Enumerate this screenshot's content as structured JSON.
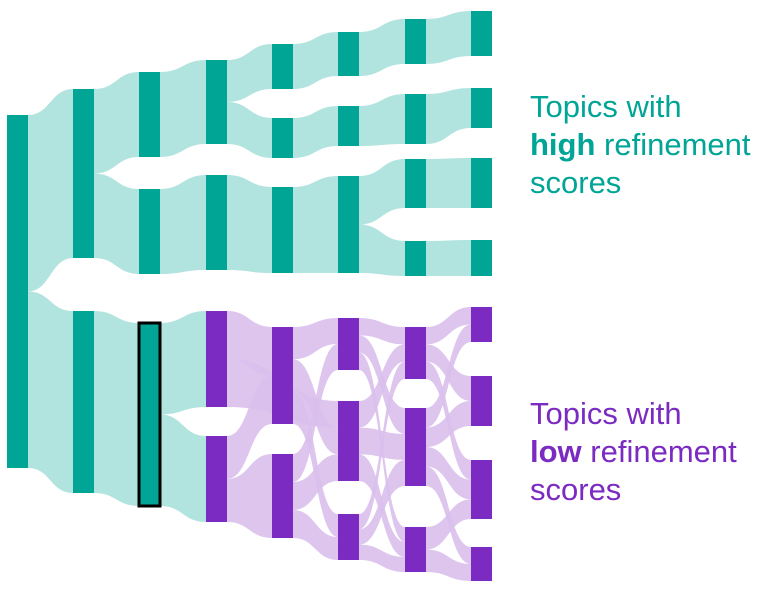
{
  "colors": {
    "high_node": "#00a596",
    "high_link": "#b2e4df",
    "low_node": "#7b2ac2",
    "low_link": "#d9bfec",
    "highlight_border": "#000000"
  },
  "legend": {
    "high": {
      "line1": "Topics with",
      "emphasis": "high",
      "rest": " refinement",
      "line3": "scores"
    },
    "low": {
      "line1": "Topics with",
      "emphasis": "low",
      "rest": " refinement",
      "line3": "scores"
    }
  },
  "diagram": {
    "levels": 8,
    "highlighted_node": "c2",
    "nodes": [
      {
        "id": "a",
        "level": 0,
        "group": "high"
      },
      {
        "id": "b1",
        "level": 1,
        "group": "high"
      },
      {
        "id": "b2",
        "level": 1,
        "group": "high"
      },
      {
        "id": "c1",
        "level": 2,
        "group": "high"
      },
      {
        "id": "c3",
        "level": 2,
        "group": "high"
      },
      {
        "id": "c2",
        "level": 2,
        "group": "high"
      },
      {
        "id": "d1",
        "level": 3,
        "group": "high"
      },
      {
        "id": "d2",
        "level": 3,
        "group": "high"
      },
      {
        "id": "d3",
        "level": 3,
        "group": "low"
      },
      {
        "id": "d4",
        "level": 3,
        "group": "low"
      },
      {
        "id": "e1",
        "level": 4,
        "group": "high"
      },
      {
        "id": "e2",
        "level": 4,
        "group": "high"
      },
      {
        "id": "e3",
        "level": 4,
        "group": "high"
      },
      {
        "id": "e4",
        "level": 4,
        "group": "low"
      },
      {
        "id": "e5",
        "level": 4,
        "group": "low"
      },
      {
        "id": "f1",
        "level": 5,
        "group": "high"
      },
      {
        "id": "f2",
        "level": 5,
        "group": "high"
      },
      {
        "id": "f3",
        "level": 5,
        "group": "high"
      },
      {
        "id": "f4",
        "level": 5,
        "group": "low"
      },
      {
        "id": "f5",
        "level": 5,
        "group": "low"
      },
      {
        "id": "f6",
        "level": 5,
        "group": "low"
      },
      {
        "id": "g1",
        "level": 6,
        "group": "high"
      },
      {
        "id": "g2",
        "level": 6,
        "group": "high"
      },
      {
        "id": "g3",
        "level": 6,
        "group": "high"
      },
      {
        "id": "g4",
        "level": 6,
        "group": "high"
      },
      {
        "id": "g5",
        "level": 6,
        "group": "low"
      },
      {
        "id": "g6",
        "level": 6,
        "group": "low"
      },
      {
        "id": "g7",
        "level": 6,
        "group": "low"
      },
      {
        "id": "h1",
        "level": 7,
        "group": "high"
      },
      {
        "id": "h2",
        "level": 7,
        "group": "high"
      },
      {
        "id": "h3",
        "level": 7,
        "group": "high"
      },
      {
        "id": "h4",
        "level": 7,
        "group": "high"
      },
      {
        "id": "h5",
        "level": 7,
        "group": "low"
      },
      {
        "id": "h6",
        "level": 7,
        "group": "low"
      },
      {
        "id": "h7",
        "level": 7,
        "group": "low"
      },
      {
        "id": "h8",
        "level": 7,
        "group": "low"
      }
    ],
    "links": [
      {
        "from": "a",
        "to": "b1",
        "group": "high"
      },
      {
        "from": "a",
        "to": "b2",
        "group": "high"
      },
      {
        "from": "b1",
        "to": "c1",
        "group": "high"
      },
      {
        "from": "b1",
        "to": "c3",
        "group": "high"
      },
      {
        "from": "b2",
        "to": "c2",
        "group": "high"
      },
      {
        "from": "c1",
        "to": "d1",
        "group": "high"
      },
      {
        "from": "c3",
        "to": "d2",
        "group": "high"
      },
      {
        "from": "c2",
        "to": "d3",
        "group": "high"
      },
      {
        "from": "c2",
        "to": "d4",
        "group": "high"
      },
      {
        "from": "d1",
        "to": "e1",
        "group": "high"
      },
      {
        "from": "d1",
        "to": "e2",
        "group": "high"
      },
      {
        "from": "d2",
        "to": "e3",
        "group": "high"
      },
      {
        "from": "d3",
        "to": "e4",
        "group": "low"
      },
      {
        "from": "d3",
        "to": "f5",
        "group": "low"
      },
      {
        "from": "d4",
        "to": "e4",
        "group": "low"
      },
      {
        "from": "d4",
        "to": "e5",
        "group": "low"
      },
      {
        "from": "e1",
        "to": "f1",
        "group": "high"
      },
      {
        "from": "e2",
        "to": "f2",
        "group": "high"
      },
      {
        "from": "e3",
        "to": "f3",
        "group": "high"
      },
      {
        "from": "e4",
        "to": "f4",
        "group": "low"
      },
      {
        "from": "e4",
        "to": "f5",
        "group": "low"
      },
      {
        "from": "e4",
        "to": "f6",
        "group": "low"
      },
      {
        "from": "e5",
        "to": "f4",
        "group": "low"
      },
      {
        "from": "e5",
        "to": "f5",
        "group": "low"
      },
      {
        "from": "e5",
        "to": "f6",
        "group": "low"
      },
      {
        "from": "f1",
        "to": "g1",
        "group": "high"
      },
      {
        "from": "f2",
        "to": "g2",
        "group": "high"
      },
      {
        "from": "f3",
        "to": "g3",
        "group": "high"
      },
      {
        "from": "f3",
        "to": "g4",
        "group": "high"
      },
      {
        "from": "f4",
        "to": "g5",
        "group": "low"
      },
      {
        "from": "f4",
        "to": "g6",
        "group": "low"
      },
      {
        "from": "f4",
        "to": "g7",
        "group": "low"
      },
      {
        "from": "f5",
        "to": "g5",
        "group": "low"
      },
      {
        "from": "f5",
        "to": "g6",
        "group": "low"
      },
      {
        "from": "f5",
        "to": "g7",
        "group": "low"
      },
      {
        "from": "f6",
        "to": "g5",
        "group": "low"
      },
      {
        "from": "f6",
        "to": "g6",
        "group": "low"
      },
      {
        "from": "f6",
        "to": "g7",
        "group": "low"
      },
      {
        "from": "g1",
        "to": "h1",
        "group": "high"
      },
      {
        "from": "g2",
        "to": "h2",
        "group": "high"
      },
      {
        "from": "g3",
        "to": "h3",
        "group": "high"
      },
      {
        "from": "g4",
        "to": "h4",
        "group": "high"
      },
      {
        "from": "g5",
        "to": "h5",
        "group": "low"
      },
      {
        "from": "g5",
        "to": "h6",
        "group": "low"
      },
      {
        "from": "g5",
        "to": "h7",
        "group": "low"
      },
      {
        "from": "g6",
        "to": "h5",
        "group": "low"
      },
      {
        "from": "g6",
        "to": "h6",
        "group": "low"
      },
      {
        "from": "g6",
        "to": "h7",
        "group": "low"
      },
      {
        "from": "g6",
        "to": "h8",
        "group": "low"
      },
      {
        "from": "g7",
        "to": "h7",
        "group": "low"
      },
      {
        "from": "g7",
        "to": "h8",
        "group": "low"
      }
    ]
  }
}
